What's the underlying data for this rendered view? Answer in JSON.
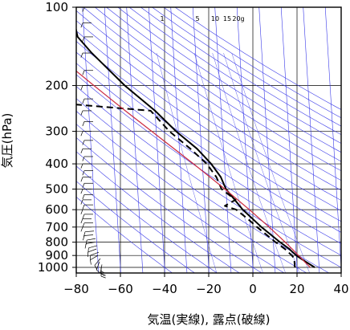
{
  "chart_data": {
    "type": "line",
    "subtype": "skew-T log-p diagram",
    "title": "",
    "xlabel": "気温(実線), 露点(破線)",
    "ylabel": "気圧(hPa)",
    "xlim": [
      -80,
      40
    ],
    "ylim": [
      1050,
      100
    ],
    "yscale": "log",
    "x_ticks": [
      -80,
      -60,
      -40,
      -20,
      0,
      20,
      40
    ],
    "y_ticks": [
      100,
      200,
      300,
      400,
      500,
      600,
      700,
      800,
      900,
      1000
    ],
    "grid": true,
    "mixing_ratio_labels": [
      "1",
      "5",
      "10",
      "15",
      "20g"
    ],
    "series": [
      {
        "name": "",
        "style": "solid",
        "color": "#000000",
        "points": [
          {
            "p": 1000,
            "t": 28
          },
          {
            "p": 950,
            "t": 24
          },
          {
            "p": 925,
            "t": 22
          },
          {
            "p": 900,
            "t": 20
          },
          {
            "p": 850,
            "t": 17
          },
          {
            "p": 800,
            "t": 13
          },
          {
            "p": 700,
            "t": 5
          },
          {
            "p": 600,
            "t": -3
          },
          {
            "p": 500,
            "t": -10
          },
          {
            "p": 450,
            "t": -12
          },
          {
            "p": 400,
            "t": -16
          },
          {
            "p": 350,
            "t": -22
          },
          {
            "p": 300,
            "t": -31
          },
          {
            "p": 250,
            "t": -40
          },
          {
            "p": 200,
            "t": -53
          },
          {
            "p": 150,
            "t": -67
          },
          {
            "p": 130,
            "t": -73
          },
          {
            "p": 115,
            "t": -74
          },
          {
            "p": 100,
            "t": -78
          }
        ]
      },
      {
        "name": "",
        "style": "dashed",
        "color": "#000000",
        "points": [
          {
            "p": 1000,
            "t": 19
          },
          {
            "p": 950,
            "t": 19
          },
          {
            "p": 925,
            "t": 19
          },
          {
            "p": 900,
            "t": 18
          },
          {
            "p": 850,
            "t": 15
          },
          {
            "p": 800,
            "t": 11
          },
          {
            "p": 700,
            "t": 3
          },
          {
            "p": 650,
            "t": -1
          },
          {
            "p": 600,
            "t": -6
          },
          {
            "p": 580,
            "t": -11
          },
          {
            "p": 550,
            "t": -6
          },
          {
            "p": 500,
            "t": -12
          },
          {
            "p": 450,
            "t": -14
          },
          {
            "p": 400,
            "t": -18
          },
          {
            "p": 350,
            "t": -25
          },
          {
            "p": 300,
            "t": -34
          },
          {
            "p": 250,
            "t": -42
          },
          {
            "p": 235,
            "t": -80
          }
        ]
      },
      {
        "name": "",
        "style": "solid",
        "color": "#cc2a40",
        "points": [
          {
            "p": 1000,
            "t": 26
          },
          {
            "p": 950,
            "t": 23.5
          },
          {
            "p": 925,
            "t": 22.3
          },
          {
            "p": 900,
            "t": 21
          },
          {
            "p": 850,
            "t": 18.3
          },
          {
            "p": 800,
            "t": 15.3
          },
          {
            "p": 700,
            "t": 8.5
          },
          {
            "p": 600,
            "t": 0
          },
          {
            "p": 500,
            "t": -10.5
          },
          {
            "p": 400,
            "t": -24
          },
          {
            "p": 300,
            "t": -42
          },
          {
            "p": 250,
            "t": -53.5
          },
          {
            "p": 200,
            "t": -67
          },
          {
            "p": 150,
            "t": -84
          }
        ]
      }
    ],
    "wind_barbs": [
      {
        "p": 1000,
        "spd": 15,
        "dir": 180
      },
      {
        "p": 975,
        "spd": 15,
        "dir": 190
      },
      {
        "p": 950,
        "spd": 10,
        "dir": 200
      },
      {
        "p": 925,
        "spd": 10,
        "dir": 220
      },
      {
        "p": 900,
        "spd": 10,
        "dir": 240
      },
      {
        "p": 875,
        "spd": 10,
        "dir": 250
      },
      {
        "p": 850,
        "spd": 10,
        "dir": 250
      },
      {
        "p": 825,
        "spd": 10,
        "dir": 255
      },
      {
        "p": 800,
        "spd": 10,
        "dir": 260
      },
      {
        "p": 775,
        "spd": 10,
        "dir": 260
      },
      {
        "p": 750,
        "spd": 10,
        "dir": 265
      },
      {
        "p": 725,
        "spd": 10,
        "dir": 265
      },
      {
        "p": 700,
        "spd": 10,
        "dir": 270
      },
      {
        "p": 675,
        "spd": 10,
        "dir": 270
      },
      {
        "p": 650,
        "spd": 10,
        "dir": 270
      },
      {
        "p": 625,
        "spd": 10,
        "dir": 270
      },
      {
        "p": 600,
        "spd": 10,
        "dir": 270
      },
      {
        "p": 575,
        "spd": 10,
        "dir": 270
      },
      {
        "p": 550,
        "spd": 10,
        "dir": 270
      },
      {
        "p": 525,
        "spd": 10,
        "dir": 270
      },
      {
        "p": 500,
        "spd": 10,
        "dir": 270
      },
      {
        "p": 475,
        "spd": 10,
        "dir": 270
      },
      {
        "p": 450,
        "spd": 10,
        "dir": 270
      },
      {
        "p": 425,
        "spd": 10,
        "dir": 270
      },
      {
        "p": 400,
        "spd": 10,
        "dir": 270
      },
      {
        "p": 375,
        "spd": 10,
        "dir": 270
      },
      {
        "p": 350,
        "spd": 10,
        "dir": 270
      },
      {
        "p": 325,
        "spd": 10,
        "dir": 270
      },
      {
        "p": 300,
        "spd": 10,
        "dir": 270
      },
      {
        "p": 275,
        "spd": 10,
        "dir": 270
      },
      {
        "p": 250,
        "spd": 10,
        "dir": 270
      },
      {
        "p": 225,
        "spd": 10,
        "dir": 270
      },
      {
        "p": 200,
        "spd": 10,
        "dir": 270
      },
      {
        "p": 175,
        "spd": 10,
        "dir": 270
      },
      {
        "p": 150,
        "spd": 10,
        "dir": 270
      },
      {
        "p": 130,
        "spd": 10,
        "dir": 270
      },
      {
        "p": 115,
        "spd": 10,
        "dir": 270
      },
      {
        "p": 100,
        "spd": 10,
        "dir": 270
      }
    ]
  }
}
